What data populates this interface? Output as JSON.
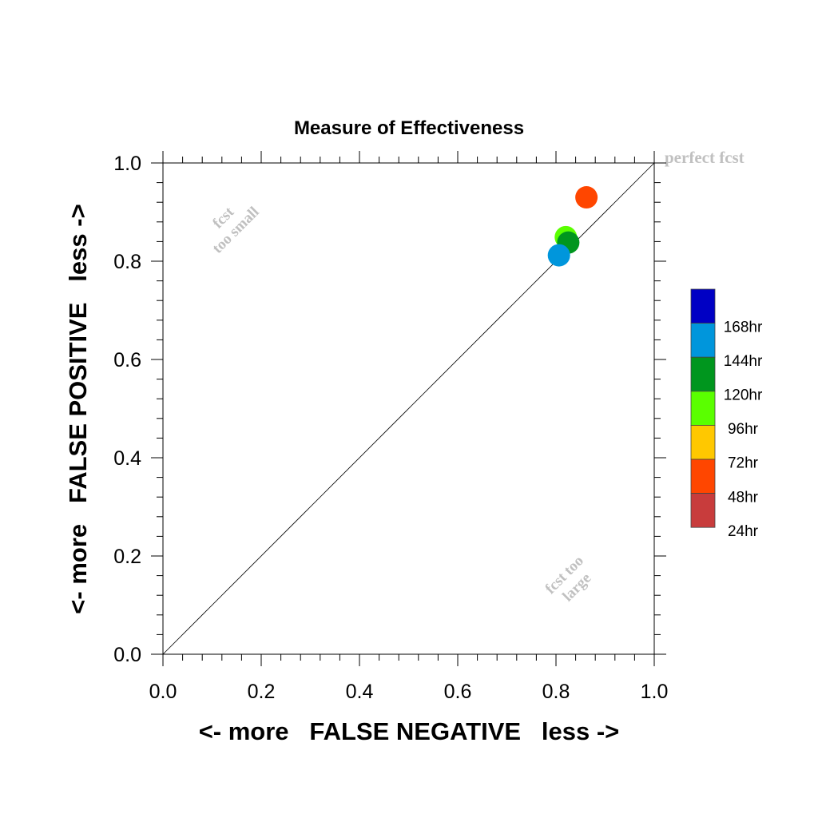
{
  "chart_data": {
    "type": "scatter",
    "title": "Measure of Effectiveness",
    "xlabel": "<- more   FALSE NEGATIVE   less ->",
    "ylabel": "<- more   FALSE POSITIVE   less ->",
    "xlim": [
      0,
      1
    ],
    "ylim": [
      0,
      1
    ],
    "x_ticks": [
      "0.0",
      "0.2",
      "0.4",
      "0.6",
      "0.8",
      "1.0"
    ],
    "y_ticks": [
      "0.0",
      "0.2",
      "0.4",
      "0.6",
      "0.8",
      "1.0"
    ],
    "grid": false,
    "diagonal_line": true,
    "annotations": {
      "perfect": "perfect fcst",
      "small_line1": "fcst",
      "small_line2": "too small",
      "large_line1": "fcst too",
      "large_line2": "large"
    },
    "legend_position": "right",
    "legend": [
      {
        "label": "168hr",
        "color": "#0000c4"
      },
      {
        "label": "144hr",
        "color": "#0096dc"
      },
      {
        "label": "120hr",
        "color": "#00961e"
      },
      {
        "label": "96hr",
        "color": "#5aff00"
      },
      {
        "label": "72hr",
        "color": "#ffc800"
      },
      {
        "label": "48hr",
        "color": "#ff4600"
      },
      {
        "label": "24hr",
        "color": "#c83c3c"
      }
    ],
    "series": [
      {
        "name": "48hr",
        "color": "#ff4600",
        "x": 0.862,
        "y": 0.93
      },
      {
        "name": "96hr",
        "color": "#5aff00",
        "x": 0.82,
        "y": 0.849
      },
      {
        "name": "120hr",
        "color": "#00961e",
        "x": 0.825,
        "y": 0.838
      },
      {
        "name": "144hr",
        "color": "#0096dc",
        "x": 0.806,
        "y": 0.812
      }
    ]
  }
}
